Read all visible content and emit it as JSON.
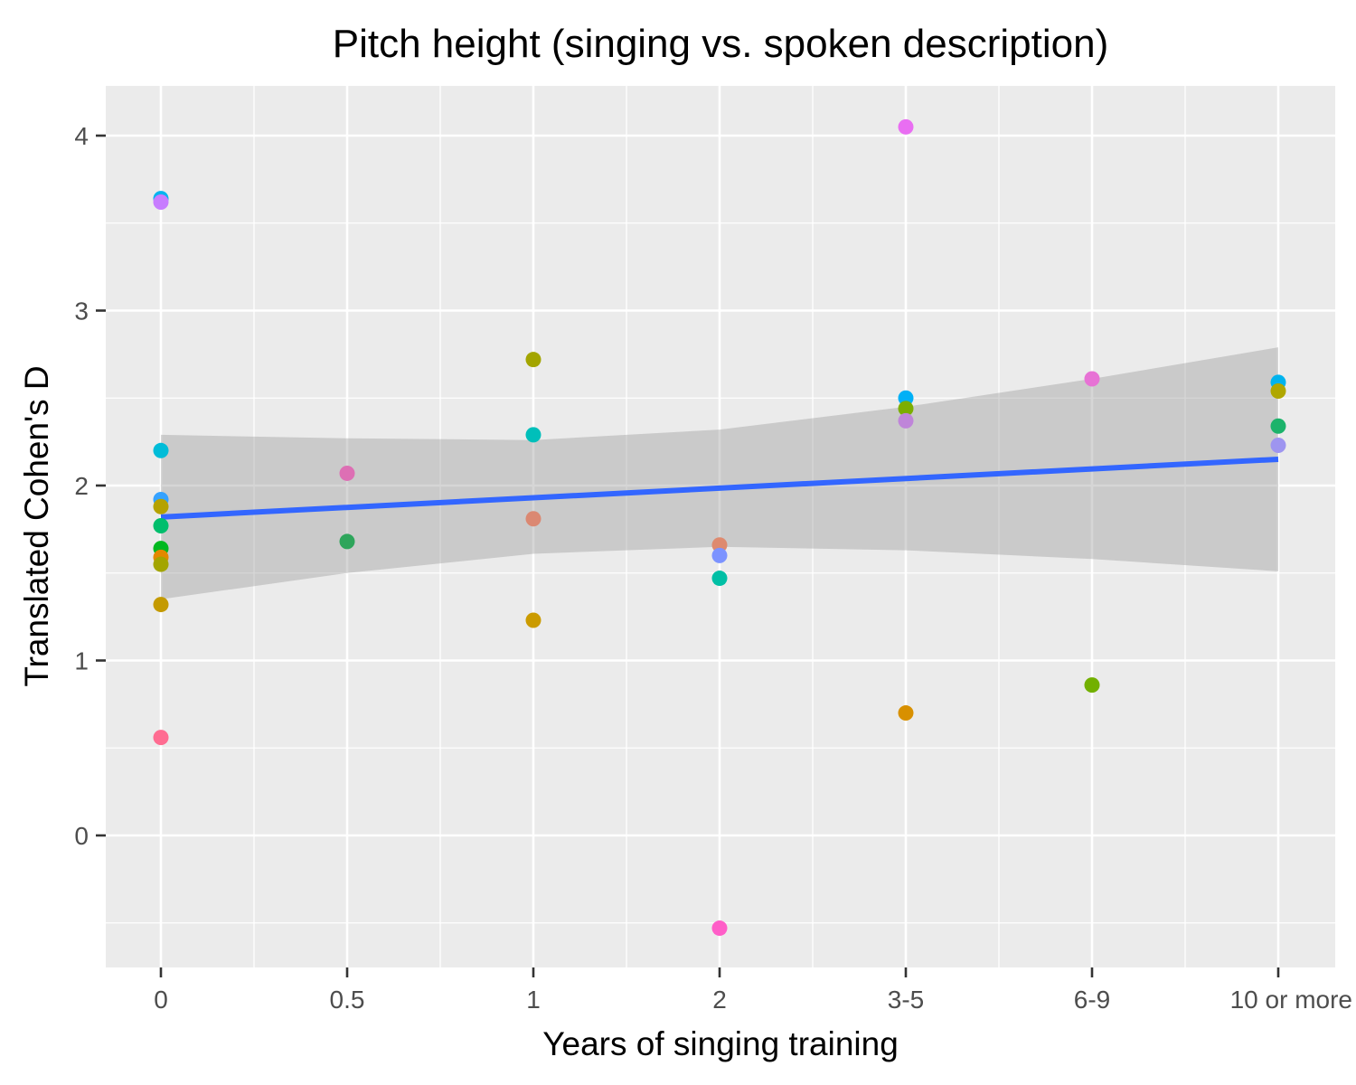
{
  "chart_data": {
    "type": "scatter",
    "title": "Pitch height (singing vs. spoken description)",
    "xlabel": "Years of singing training",
    "ylabel": "Translated Cohen's D",
    "categories": [
      "0",
      "0.5",
      "1",
      "2",
      "3-5",
      "6-9",
      "10 or more"
    ],
    "ylim": [
      -0.75,
      4.3
    ],
    "yticks": [
      "0",
      "1",
      "2",
      "3",
      "4"
    ],
    "grid": true,
    "legend": "none",
    "points": [
      {
        "x": "0",
        "y": 3.64,
        "color": "#00B4EF"
      },
      {
        "x": "0",
        "y": 3.62,
        "color": "#C77CFF"
      },
      {
        "x": "0",
        "y": 2.2,
        "color": "#00BCD8"
      },
      {
        "x": "0",
        "y": 1.92,
        "color": "#35A2FF"
      },
      {
        "x": "0",
        "y": 1.88,
        "color": "#B5A200"
      },
      {
        "x": "0",
        "y": 1.77,
        "color": "#00BE6C"
      },
      {
        "x": "0",
        "y": 1.64,
        "color": "#00B81F"
      },
      {
        "x": "0",
        "y": 1.59,
        "color": "#E38900"
      },
      {
        "x": "0",
        "y": 1.55,
        "color": "#A3A500"
      },
      {
        "x": "0",
        "y": 1.32,
        "color": "#C49A00"
      },
      {
        "x": "0",
        "y": 0.56,
        "color": "#FF6C91"
      },
      {
        "x": "0.5",
        "y": 2.07,
        "color": "#DD6FB4"
      },
      {
        "x": "0.5",
        "y": 1.68,
        "color": "#2EA55B"
      },
      {
        "x": "1",
        "y": 2.72,
        "color": "#A3A500"
      },
      {
        "x": "1",
        "y": 2.29,
        "color": "#00BFBA"
      },
      {
        "x": "1",
        "y": 1.81,
        "color": "#DB8872"
      },
      {
        "x": "1",
        "y": 1.23,
        "color": "#CB9B00"
      },
      {
        "x": "2",
        "y": 1.66,
        "color": "#DE8A6F"
      },
      {
        "x": "2",
        "y": 1.6,
        "color": "#7C93FF"
      },
      {
        "x": "2",
        "y": 1.47,
        "color": "#00BFA5"
      },
      {
        "x": "2",
        "y": -0.53,
        "color": "#FF5EC8"
      },
      {
        "x": "3-5",
        "y": 4.05,
        "color": "#E96EF2"
      },
      {
        "x": "3-5",
        "y": 2.5,
        "color": "#00B0F6"
      },
      {
        "x": "3-5",
        "y": 2.44,
        "color": "#7CAE00"
      },
      {
        "x": "3-5",
        "y": 2.37,
        "color": "#BF85D9"
      },
      {
        "x": "3-5",
        "y": 0.7,
        "color": "#D89000"
      },
      {
        "x": "6-9",
        "y": 2.61,
        "color": "#E772D5"
      },
      {
        "x": "6-9",
        "y": 0.86,
        "color": "#72B000"
      },
      {
        "x": "10 or more",
        "y": 2.59,
        "color": "#00B3EE"
      },
      {
        "x": "10 or more",
        "y": 2.54,
        "color": "#B0A700"
      },
      {
        "x": "10 or more",
        "y": 2.34,
        "color": "#1CB36B"
      },
      {
        "x": "10 or more",
        "y": 2.23,
        "color": "#9E95F0"
      }
    ],
    "trend": {
      "color": "#3366FF",
      "from": {
        "x": "0",
        "y": 1.82
      },
      "to": {
        "x": "10 or more",
        "y": 2.15
      }
    },
    "confidence_band": {
      "color": "#999999",
      "x": [
        "0",
        "0.5",
        "1",
        "2",
        "3-5",
        "6-9",
        "10 or more"
      ],
      "upper": [
        2.29,
        2.27,
        2.26,
        2.32,
        2.45,
        2.61,
        2.79
      ],
      "lower": [
        1.35,
        1.5,
        1.61,
        1.65,
        1.63,
        1.58,
        1.51
      ]
    }
  }
}
